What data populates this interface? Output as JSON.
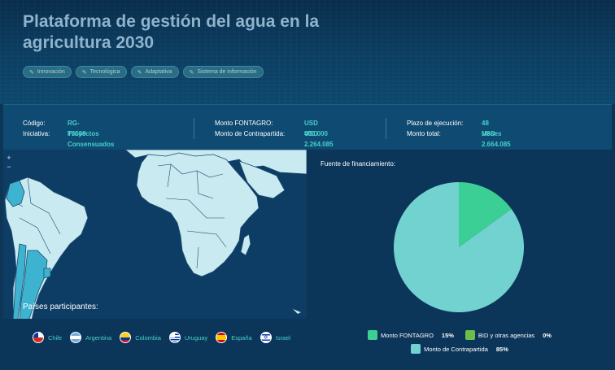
{
  "project": {
    "title": "Plataforma de gestión del agua en la agricultura 2030",
    "tags": [
      "Innovación",
      "Tecnológica",
      "Adaptativa",
      "Sistema de información"
    ]
  },
  "info": {
    "col1": [
      {
        "label": "Código:",
        "value": "RG-T3589"
      },
      {
        "label": "Iniciativa:",
        "value": "Proyectos Consensuados"
      }
    ],
    "col2": [
      {
        "label": "Monto FONTAGRO:",
        "value": "USD 400.000"
      },
      {
        "label": "Monto de Contrapartida:",
        "value": "USD 2.264.085"
      }
    ],
    "col3": [
      {
        "label": "Plazo de ejecución:",
        "value": "48 Meses"
      },
      {
        "label": "Monto total:",
        "value": "USD 2.664.085"
      }
    ]
  },
  "map": {
    "zoom_in": "+",
    "zoom_out": "−",
    "countries_label": "Países participantes:",
    "countries": [
      {
        "name": "Chile",
        "flag": "chile-flag-icon"
      },
      {
        "name": "Argentina",
        "flag": "argentina-flag-icon"
      },
      {
        "name": "Colombia",
        "flag": "colombia-flag-icon"
      },
      {
        "name": "Uruguay",
        "flag": "uruguay-flag-icon"
      },
      {
        "name": "España",
        "flag": "spain-flag-icon"
      },
      {
        "name": "Israel",
        "flag": "israel-flag-icon"
      }
    ]
  },
  "funding": {
    "label": "Fuente de financiamiento:",
    "legend": [
      {
        "name": "Monto FONTAGRO",
        "pct": "15%",
        "color": "#3ccf95"
      },
      {
        "name": "BID y otras agencias",
        "pct": "0%",
        "color": "#6cbf4a"
      },
      {
        "name": "Monto de Contrapartida",
        "pct": "85%",
        "color": "#72d2d0"
      }
    ]
  },
  "chart_data": {
    "type": "pie",
    "categories": [
      "Monto FONTAGRO",
      "BID y otras agencias",
      "Monto de Contrapartida"
    ],
    "values": [
      15,
      0,
      85
    ],
    "colors": [
      "#3ccf95",
      "#6cbf4a",
      "#72d2d0"
    ]
  }
}
